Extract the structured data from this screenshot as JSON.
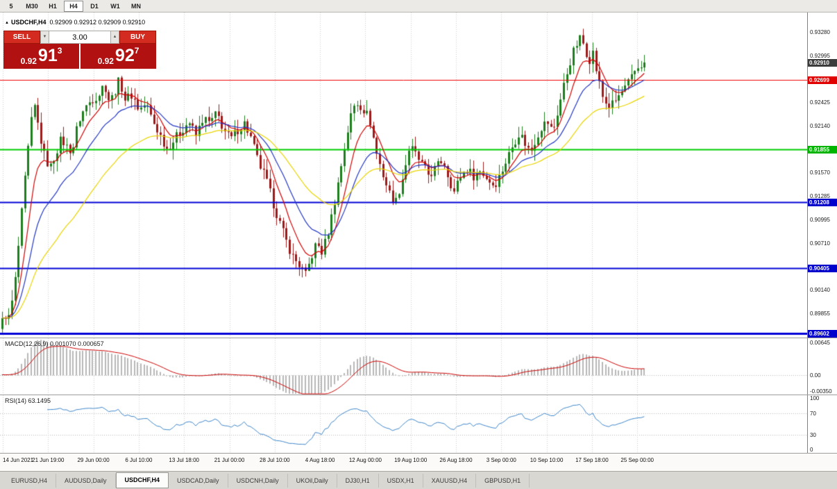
{
  "toolbar": {
    "timeframes": [
      "5",
      "M30",
      "H1",
      "H4",
      "D1",
      "W1",
      "MN"
    ],
    "active_timeframe": "H4"
  },
  "icons": {
    "symbol_marker": "▲",
    "up_arrow": "▲",
    "down_arrow": "▼"
  },
  "symbol_header": {
    "symbol": "USDCHF,H4",
    "ohlc": "0.92909 0.92912 0.92909 0.92910"
  },
  "one_click_trading": {
    "sell_label": "SELL",
    "buy_label": "BUY",
    "volume": "3.00",
    "bid": {
      "prefix": "0.92",
      "digits": "91",
      "pip": "3"
    },
    "ask": {
      "prefix": "0.92",
      "digits": "92",
      "pip": "7"
    }
  },
  "price_scale": {
    "ticks": [
      {
        "label": "0.93280",
        "price": 0.9328
      },
      {
        "label": "0.92995",
        "price": 0.92995
      },
      {
        "label": "0.92425",
        "price": 0.92425
      },
      {
        "label": "0.92140",
        "price": 0.9214
      },
      {
        "label": "0.91570",
        "price": 0.9157
      },
      {
        "label": "0.91285",
        "price": 0.91285
      },
      {
        "label": "0.90995",
        "price": 0.90995
      },
      {
        "label": "0.90710",
        "price": 0.9071
      },
      {
        "label": "0.90140",
        "price": 0.9014
      },
      {
        "label": "0.89855",
        "price": 0.89855
      }
    ],
    "badges": [
      {
        "label": "0.92910",
        "price": 0.9291,
        "color": "#3c3c3c",
        "type": "current-price"
      },
      {
        "label": "0.92699",
        "price": 0.92699,
        "color": "#e00000",
        "type": "hline"
      },
      {
        "label": "0.91855",
        "price": 0.91855,
        "color": "#00b400",
        "type": "hline"
      },
      {
        "label": "0.91208",
        "price": 0.91208,
        "color": "#0000cd",
        "type": "hline"
      },
      {
        "label": "0.90405",
        "price": 0.90405,
        "color": "#0000cd",
        "type": "hline"
      },
      {
        "label": "0.89602",
        "price": 0.89602,
        "color": "#0000cd",
        "type": "hline"
      }
    ]
  },
  "indicators": {
    "macd": {
      "label": "MACD(12,26,9) 0.001070 0.000657",
      "scale": [
        {
          "label": "0.00645",
          "v": 0.00645
        },
        {
          "label": "0.00",
          "v": 0
        },
        {
          "label": "-0.00350",
          "v": -0.0035
        }
      ]
    },
    "rsi": {
      "label": "RSI(14) 63.1495",
      "scale": [
        {
          "label": "100",
          "v": 100
        },
        {
          "label": "70",
          "v": 70
        },
        {
          "label": "30",
          "v": 30
        },
        {
          "label": "0",
          "v": 0
        }
      ],
      "levels": [
        70,
        30
      ]
    }
  },
  "time_axis": [
    "14 Jun 2021",
    "21 Jun 19:00",
    "29 Jun 00:00",
    "6 Jul 10:00",
    "13 Jul 18:00",
    "21 Jul 00:00",
    "28 Jul 10:00",
    "4 Aug 18:00",
    "12 Aug 00:00",
    "19 Aug 10:00",
    "26 Aug 18:00",
    "3 Sep 00:00",
    "10 Sep 10:00",
    "17 Sep 18:00",
    "25 Sep 00:00"
  ],
  "bottom_tabs": {
    "tabs": [
      "EURUSD,H4",
      "AUDUSD,Daily",
      "USDCHF,H4",
      "USDCAD,Daily",
      "USDCNH,Daily",
      "UKOil,Daily",
      "DJ30,H1",
      "USDX,H1",
      "XAUUSD,H4",
      "GBPUSD,H1"
    ],
    "active": "USDCHF,H4"
  },
  "chart_data": {
    "type": "candlestick",
    "symbol": "USDCHF",
    "timeframe": "H4",
    "last_close": 0.9291,
    "y_range": [
      0.89555,
      0.9352
    ],
    "x_labels_ref": "time_axis",
    "x_start": 4,
    "x_step": 65.3,
    "candle_count": 200,
    "candle_x0": 3,
    "candle_spacing": 4.65,
    "colors": {
      "bull": "#1e7d1e",
      "bear": "#9c1a1a"
    },
    "hlines": [
      {
        "price": 0.92699,
        "color": "#f00000",
        "width": 1
      },
      {
        "price": 0.91855,
        "color": "#00cc00",
        "width": 2
      },
      {
        "price": 0.91208,
        "color": "#0202d6",
        "width": 2
      },
      {
        "price": 0.90405,
        "color": "#0202d6",
        "width": 2
      },
      {
        "price": 0.89602,
        "color": "#0202d6",
        "width": 3
      }
    ],
    "moving_averages": [
      {
        "period": 8,
        "color": "#d40000"
      },
      {
        "period": 18,
        "color": "#2336c4"
      },
      {
        "period": 40,
        "color": "#e8d400"
      }
    ],
    "macd": {
      "fast": 12,
      "slow": 26,
      "signal": 9,
      "range": [
        -0.0035,
        0.00645
      ],
      "histogram_color": "#b6b6b6",
      "signal_color": "#cc0000",
      "current_values": [
        0.00107,
        0.000657
      ]
    },
    "rsi": {
      "period": 14,
      "color": "#3d85c8",
      "levels": [
        70,
        30
      ],
      "current_value": 63.1495
    },
    "price_path_anchors": [
      [
        0,
        0.8966
      ],
      [
        6,
        0.8985
      ],
      [
        12,
        0.8978
      ],
      [
        20,
        0.9012
      ],
      [
        28,
        0.9082
      ],
      [
        36,
        0.9152
      ],
      [
        44,
        0.9216
      ],
      [
        50,
        0.9238
      ],
      [
        56,
        0.9206
      ],
      [
        64,
        0.9176
      ],
      [
        72,
        0.9162
      ],
      [
        80,
        0.9181
      ],
      [
        88,
        0.9198
      ],
      [
        96,
        0.9188
      ],
      [
        104,
        0.9183
      ],
      [
        112,
        0.9218
      ],
      [
        122,
        0.9236
      ],
      [
        132,
        0.9246
      ],
      [
        142,
        0.9252
      ],
      [
        150,
        0.9266
      ],
      [
        158,
        0.9242
      ],
      [
        165,
        0.9256
      ],
      [
        172,
        0.927
      ],
      [
        180,
        0.9246
      ],
      [
        190,
        0.9252
      ],
      [
        200,
        0.9233
      ],
      [
        210,
        0.9241
      ],
      [
        220,
        0.9219
      ],
      [
        230,
        0.9203
      ],
      [
        240,
        0.9186
      ],
      [
        250,
        0.9196
      ],
      [
        262,
        0.9209
      ],
      [
        272,
        0.9219
      ],
      [
        282,
        0.9201
      ],
      [
        292,
        0.9223
      ],
      [
        302,
        0.9217
      ],
      [
        312,
        0.9229
      ],
      [
        322,
        0.9209
      ],
      [
        332,
        0.9197
      ],
      [
        342,
        0.9209
      ],
      [
        352,
        0.9217
      ],
      [
        362,
        0.9197
      ],
      [
        372,
        0.9169
      ],
      [
        382,
        0.9151
      ],
      [
        392,
        0.9123
      ],
      [
        402,
        0.9097
      ],
      [
        412,
        0.9073
      ],
      [
        422,
        0.9053
      ],
      [
        432,
        0.9043
      ],
      [
        440,
        0.9031
      ],
      [
        448,
        0.9053
      ],
      [
        456,
        0.9071
      ],
      [
        464,
        0.9059
      ],
      [
        474,
        0.9089
      ],
      [
        484,
        0.9131
      ],
      [
        494,
        0.9179
      ],
      [
        504,
        0.9223
      ],
      [
        512,
        0.9243
      ],
      [
        522,
        0.9236
      ],
      [
        532,
        0.9223
      ],
      [
        542,
        0.9181
      ],
      [
        552,
        0.9153
      ],
      [
        562,
        0.9129
      ],
      [
        570,
        0.9121
      ],
      [
        580,
        0.9151
      ],
      [
        590,
        0.9189
      ],
      [
        598,
        0.9179
      ],
      [
        608,
        0.9166
      ],
      [
        618,
        0.9153
      ],
      [
        628,
        0.9163
      ],
      [
        638,
        0.9173
      ],
      [
        646,
        0.9151
      ],
      [
        654,
        0.9133
      ],
      [
        662,
        0.9151
      ],
      [
        672,
        0.9161
      ],
      [
        682,
        0.9153
      ],
      [
        692,
        0.9159
      ],
      [
        702,
        0.9149
      ],
      [
        712,
        0.9141
      ],
      [
        720,
        0.9153
      ],
      [
        730,
        0.9173
      ],
      [
        740,
        0.9193
      ],
      [
        748,
        0.9206
      ],
      [
        756,
        0.9193
      ],
      [
        764,
        0.9181
      ],
      [
        772,
        0.9199
      ],
      [
        780,
        0.9213
      ],
      [
        788,
        0.9219
      ],
      [
        796,
        0.9206
      ],
      [
        804,
        0.9233
      ],
      [
        812,
        0.9263
      ],
      [
        820,
        0.9289
      ],
      [
        828,
        0.9309
      ],
      [
        836,
        0.9321
      ],
      [
        842,
        0.9311
      ],
      [
        848,
        0.9293
      ],
      [
        854,
        0.9303
      ],
      [
        860,
        0.9276
      ],
      [
        868,
        0.9249
      ],
      [
        876,
        0.9237
      ],
      [
        884,
        0.9241
      ],
      [
        892,
        0.9251
      ],
      [
        900,
        0.9259
      ],
      [
        908,
        0.9269
      ],
      [
        916,
        0.9283
      ],
      [
        924,
        0.9289
      ],
      [
        928,
        0.9291
      ]
    ]
  }
}
